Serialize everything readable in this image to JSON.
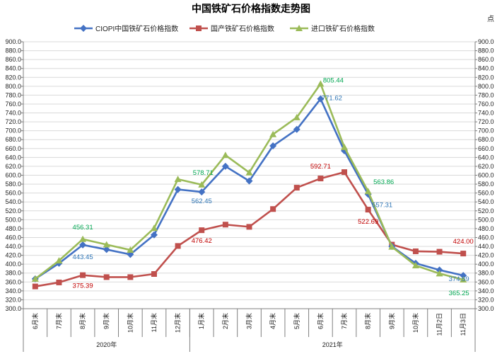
{
  "chart_data": {
    "type": "line",
    "title": "中国铁矿石价格指数走势图",
    "unit_label": "点",
    "categories": [
      "6月末",
      "7月末",
      "8月末",
      "9月末",
      "10月末",
      "11月末",
      "12月末",
      "1月末",
      "2月末",
      "3月末",
      "4月末",
      "5月末",
      "6月末",
      "7月末",
      "8月末",
      "9月末",
      "10月末",
      "11月2日",
      "11月3日"
    ],
    "year_groups": [
      {
        "label": "2020年",
        "start": 0,
        "end": 6
      },
      {
        "label": "2021年",
        "start": 7,
        "end": 18
      }
    ],
    "ylim": [
      300.0,
      900.0
    ],
    "ytick_step": 20,
    "grid": true,
    "legend_position": "top",
    "series": [
      {
        "name": "CIOPI中国铁矿石价格指数",
        "color": "#4472c4",
        "marker": "diamond",
        "values": [
          367,
          402,
          443.45,
          433,
          422,
          466,
          568,
          562.45,
          620,
          587,
          666,
          703,
          771.62,
          655,
          557.31,
          440,
          402,
          387,
          374.59
        ]
      },
      {
        "name": "国产铁矿石价格指数",
        "color": "#c0504d",
        "marker": "square",
        "values": [
          350,
          359,
          375.39,
          371,
          371,
          378,
          441,
          476.42,
          489,
          484,
          524,
          572,
          592.71,
          607,
          522.69,
          444,
          429,
          428,
          424.0
        ]
      },
      {
        "name": "进口铁矿石价格指数",
        "color": "#9bbb59",
        "marker": "triangle",
        "values": [
          367,
          408,
          456.31,
          444,
          432,
          481,
          591,
          578.71,
          645,
          606,
          692,
          730,
          805.44,
          663,
          563.86,
          439,
          397,
          379,
          365.25
        ]
      }
    ],
    "annotations": [
      {
        "series": 0,
        "index": 2,
        "text": "443.45",
        "color": "#2e75b6"
      },
      {
        "series": 0,
        "index": 7,
        "text": "562.45",
        "color": "#2e75b6"
      },
      {
        "series": 0,
        "index": 12,
        "text": "771.62",
        "color": "#2e75b6"
      },
      {
        "series": 0,
        "index": 14,
        "text": "557.31",
        "color": "#2e75b6"
      },
      {
        "series": 0,
        "index": 18,
        "text": "374.59",
        "color": "#2e75b6"
      },
      {
        "series": 1,
        "index": 2,
        "text": "375.39",
        "color": "#c00000"
      },
      {
        "series": 1,
        "index": 7,
        "text": "476.42",
        "color": "#c00000"
      },
      {
        "series": 1,
        "index": 12,
        "text": "592.71",
        "color": "#c00000"
      },
      {
        "series": 1,
        "index": 14,
        "text": "522.69",
        "color": "#c00000"
      },
      {
        "series": 1,
        "index": 18,
        "text": "424.00",
        "color": "#c00000"
      },
      {
        "series": 2,
        "index": 2,
        "text": "456.31",
        "color": "#00a651"
      },
      {
        "series": 2,
        "index": 7,
        "text": "578.71",
        "color": "#00a651"
      },
      {
        "series": 2,
        "index": 12,
        "text": "805.44",
        "color": "#00a651"
      },
      {
        "series": 2,
        "index": 14,
        "text": "563.86",
        "color": "#00a651"
      },
      {
        "series": 2,
        "index": 18,
        "text": "365.25",
        "color": "#00a651"
      }
    ]
  }
}
